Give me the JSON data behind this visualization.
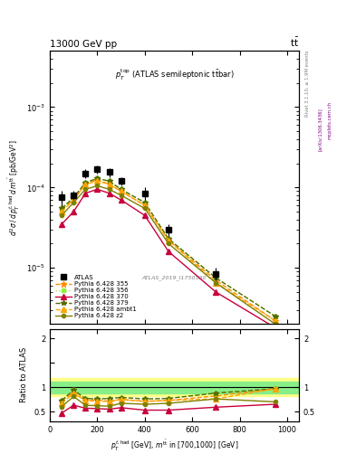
{
  "x_data": [
    50,
    100,
    150,
    200,
    250,
    300,
    400,
    500,
    700,
    950
  ],
  "ATLAS_y": [
    7.5e-05,
    8e-05,
    0.00015,
    0.00017,
    0.000155,
    0.00012,
    8.5e-05,
    3e-05,
    8.5e-06,
    null
  ],
  "ATLAS_yerr_lo": [
    1.5e-05,
    1e-05,
    2e-05,
    2e-05,
    2e-05,
    1.5e-05,
    1.5e-05,
    5e-06,
    1.5e-06,
    null
  ],
  "ATLAS_yerr_hi": [
    1.5e-05,
    1e-05,
    2e-05,
    2e-05,
    2e-05,
    1.5e-05,
    1.5e-05,
    5e-06,
    1.5e-06,
    null
  ],
  "py355_y": [
    5.5e-05,
    7e-05,
    0.00011,
    0.000125,
    0.00011,
    9e-05,
    6e-05,
    2.2e-05,
    7e-06,
    2.2e-06
  ],
  "py356_y": [
    5.5e-05,
    7.5e-05,
    0.000115,
    0.00013,
    0.00012,
    9.5e-05,
    6.5e-05,
    2.3e-05,
    7.5e-06,
    2.5e-06
  ],
  "py370_y": [
    3.5e-05,
    5e-05,
    8.5e-05,
    9.5e-05,
    8.5e-05,
    7e-05,
    4.5e-05,
    1.6e-05,
    5e-06,
    1.8e-06
  ],
  "py379_y": [
    5.5e-05,
    7.5e-05,
    0.000115,
    0.00013,
    0.00012,
    9.5e-05,
    6.5e-05,
    2.3e-05,
    7.5e-06,
    2.5e-06
  ],
  "pyambt1_y": [
    5e-05,
    7e-05,
    0.00011,
    0.00012,
    0.00011,
    9e-05,
    6e-05,
    2.2e-05,
    6.5e-06,
    2.2e-06
  ],
  "pyz2_y": [
    4.5e-05,
    6.5e-05,
    9.5e-05,
    0.000105,
    9.5e-05,
    8e-05,
    5.5e-05,
    2e-05,
    6.5e-06,
    2e-06
  ],
  "ratio_py355": [
    0.73,
    0.88,
    0.73,
    0.74,
    0.71,
    0.75,
    0.71,
    0.73,
    0.82,
    0.97
  ],
  "ratio_py356": [
    0.73,
    0.94,
    0.77,
    0.76,
    0.77,
    0.79,
    0.76,
    0.77,
    0.88,
    0.97
  ],
  "ratio_py370": [
    0.47,
    0.63,
    0.57,
    0.56,
    0.55,
    0.58,
    0.53,
    0.53,
    0.59,
    0.65
  ],
  "ratio_py379": [
    0.73,
    0.94,
    0.77,
    0.76,
    0.77,
    0.79,
    0.76,
    0.77,
    0.88,
    0.97
  ],
  "ratio_pyambt1": [
    0.67,
    0.88,
    0.73,
    0.71,
    0.71,
    0.75,
    0.71,
    0.73,
    0.76,
    0.97
  ],
  "ratio_pyz2": [
    0.6,
    0.81,
    0.63,
    0.62,
    0.61,
    0.67,
    0.65,
    0.67,
    0.76,
    0.7
  ],
  "band_yellow_lo": 0.82,
  "band_yellow_hi": 1.18,
  "band_green_lo": 0.88,
  "band_green_hi": 1.12,
  "color_py355": "#FF8C00",
  "color_py356": "#90EE40",
  "color_py370": "#C8003C",
  "color_py379": "#556B00",
  "color_pyambt1": "#FFA500",
  "color_pyz2": "#808000",
  "ylim_main": [
    2e-06,
    0.005
  ],
  "ylim_ratio": [
    0.3,
    2.2
  ],
  "xlim": [
    0,
    1050
  ]
}
